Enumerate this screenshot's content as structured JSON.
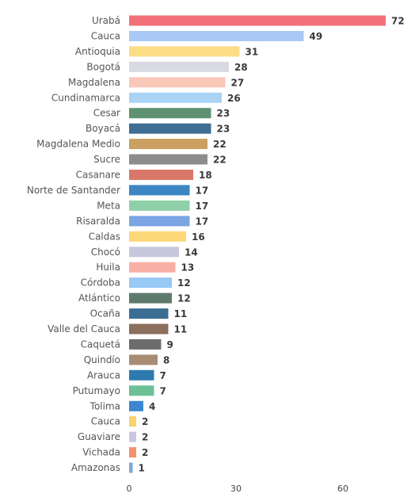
{
  "chart_data": {
    "type": "bar",
    "orientation": "horizontal",
    "categories": [
      "Urabá",
      "Cauca",
      "Antioquia",
      "Bogotá",
      "Magdalena",
      "Cundinamarca",
      "Cesar",
      "Boyacá",
      "Magdalena Medio",
      "Sucre",
      "Casanare",
      "Norte de Santander",
      "Meta",
      "Risaralda",
      "Caldas",
      "Chocó",
      "Huila",
      "Córdoba",
      "Atlántico",
      "Ocaña",
      "Valle del Cauca",
      "Caquetá",
      "Quindío",
      "Arauca",
      "Putumayo",
      "Tolima",
      "Cauca",
      "Guaviare",
      "Vichada",
      "Amazonas"
    ],
    "values": [
      72,
      49,
      31,
      28,
      27,
      26,
      23,
      23,
      22,
      22,
      18,
      17,
      17,
      17,
      16,
      14,
      13,
      12,
      12,
      11,
      11,
      9,
      8,
      7,
      7,
      4,
      2,
      2,
      2,
      1
    ],
    "colors": [
      "#f2707a",
      "#a9c8f5",
      "#fbdd86",
      "#d9d9e3",
      "#f9c8b8",
      "#a9d4f5",
      "#5f9272",
      "#3f6f94",
      "#c9a060",
      "#8c8c8c",
      "#d9786a",
      "#3c86c4",
      "#8fd0a8",
      "#7aa4e4",
      "#fdd878",
      "#c8c8dc",
      "#f8b0a4",
      "#98c8f4",
      "#5e7a6c",
      "#3c6e94",
      "#8c6e5c",
      "#6c6c6c",
      "#a88c74",
      "#2e7ab0",
      "#6cc096",
      "#3c86d0",
      "#f9d468",
      "#c8c8e0",
      "#f49070",
      "#7caad8"
    ],
    "xlim": [
      0,
      75
    ],
    "xticks": [
      0,
      30,
      60
    ],
    "title": "",
    "xlabel": "",
    "ylabel": "",
    "grid": false,
    "legend": "none"
  }
}
